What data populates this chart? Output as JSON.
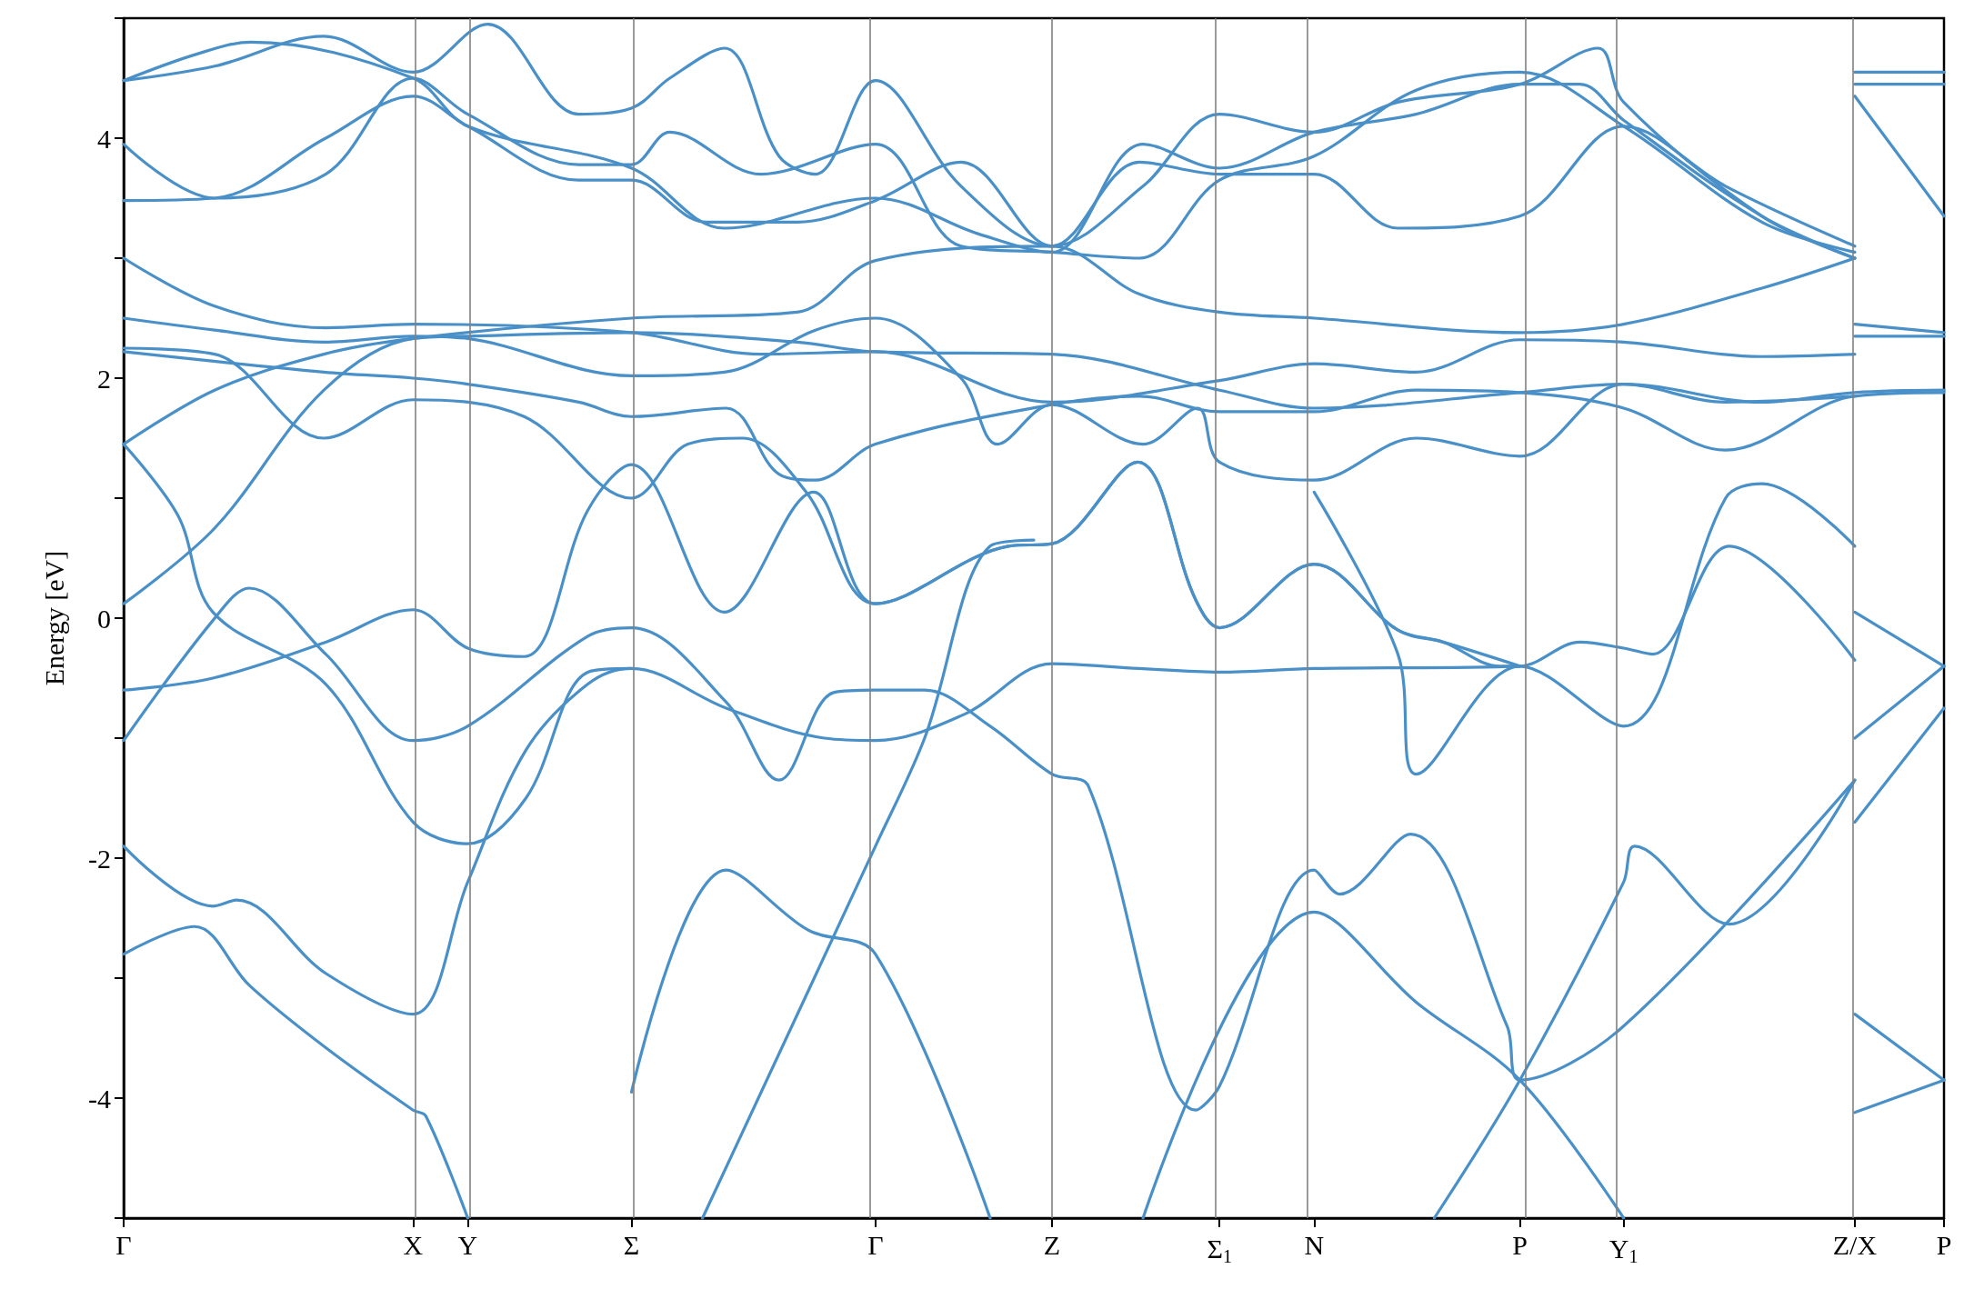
{
  "chart_data": {
    "type": "line",
    "ylabel": "Energy [eV]",
    "xlim": [
      0,
      1
    ],
    "ylim": [
      -5,
      5
    ],
    "xticks": [
      {
        "value": 0,
        "label": "Γ"
      },
      {
        "value": 0.159,
        "label": "X"
      },
      {
        "value": 0.189,
        "label": "Y"
      },
      {
        "value": 0.279,
        "label": "Σ"
      },
      {
        "value": 0.413,
        "label": "Γ"
      },
      {
        "value": 0.51,
        "label": "Z"
      },
      {
        "value": 0.602,
        "label": "Σ$_{1}$"
      },
      {
        "value": 0.654,
        "label": "N"
      },
      {
        "value": 0.767,
        "label": "P"
      },
      {
        "value": 0.824,
        "label": "Y$_{1}$"
      },
      {
        "value": 0.951,
        "label": "Z/X"
      },
      {
        "value": 1,
        "label": "P"
      }
    ],
    "yticks": [
      {
        "value": -5,
        "label": null
      },
      -4,
      {
        "value": -3,
        "label": null
      },
      -2,
      {
        "value": -1,
        "label": null
      },
      0,
      {
        "value": 1,
        "label": null
      },
      2,
      {
        "value": 3,
        "label": null
      },
      4,
      {
        "value": 5,
        "label": null
      }
    ],
    "grid": false,
    "marker": "none",
    "line_style": "solid",
    "ref_lines": [
      {
        "axis": "x",
        "value": 0.159,
        "color": "#808080"
      },
      {
        "axis": "x",
        "value": 0.189,
        "color": "#808080"
      },
      {
        "axis": "x",
        "value": 0.279,
        "color": "#808080"
      },
      {
        "axis": "x",
        "value": 0.413,
        "color": "#808080"
      },
      {
        "axis": "x",
        "value": 0.51,
        "color": "#808080"
      },
      {
        "axis": "x",
        "value": 0.602,
        "color": "#808080"
      },
      {
        "axis": "x",
        "value": 0.654,
        "color": "#808080"
      },
      {
        "axis": "x",
        "value": 0.767,
        "color": "#808080"
      },
      {
        "axis": "x",
        "value": 0.824,
        "color": "#808080"
      },
      {
        "axis": "x",
        "value": 0.951,
        "color": "#808080"
      }
    ],
    "series": [
      {
        "color": "#4a90c8",
        "x": [
          0,
          0.039,
          0.069,
          0.111,
          0.159,
          0.166,
          0.189
        ],
        "values": [
          -2.8,
          -2.57,
          -3.06,
          -3.58,
          -4.1,
          -4.15,
          -5
        ]
      },
      {
        "color": "#4a90c8",
        "x": [
          0,
          0.049,
          0.062,
          0.111,
          0.159,
          0.189,
          0.221,
          0.255,
          0.279,
          0.331,
          0.385,
          0.413,
          0.462,
          0.51,
          0.558,
          0.602,
          0.654,
          0.767,
          0.8,
          0.824,
          0.84,
          0.882,
          0.951
        ],
        "values": [
          -1.9,
          -2.4,
          -2.35,
          -2.96,
          -3.3,
          -2.2,
          -1.1,
          -0.55,
          -0.42,
          -0.75,
          -1.0,
          -1.02,
          -0.8,
          -0.38,
          -0.42,
          -0.45,
          -0.42,
          -0.4,
          -0.2,
          -0.25,
          -0.3,
          0.6,
          -0.35
        ]
      },
      {
        "color": "#4a90c8",
        "x": [
          0,
          0.049,
          0.069,
          0.111,
          0.159,
          0.189,
          0.255,
          0.279,
          0.331,
          0.36,
          0.39,
          0.413,
          0.44,
          0.476,
          0.51,
          0.53,
          0.589,
          0.602,
          0.654,
          0.668,
          0.707,
          0.76,
          0.767,
          0.824,
          0.951
        ],
        "values": [
          -1.02,
          -0.02,
          0.25,
          -0.3,
          -1.02,
          -0.9,
          -0.15,
          -0.08,
          -0.7,
          -1.35,
          -0.62,
          -0.6,
          -0.6,
          -0.9,
          -1.3,
          -1.4,
          -4.1,
          -3.9,
          -2.1,
          -2.3,
          -1.8,
          -3.4,
          -3.85,
          -3.4,
          -1.35
        ]
      },
      {
        "color": "#4a90c8",
        "x": [
          0,
          0.049,
          0.111,
          0.159,
          0.189,
          0.22,
          0.255,
          0.279,
          0.33,
          0.379,
          0.413,
          0.486,
          0.51,
          0.557,
          0.589,
          0.602,
          0.654,
          0.7,
          0.725,
          0.767
        ],
        "values": [
          -0.6,
          -0.5,
          -0.2,
          0.07,
          -0.25,
          -0.32,
          0.9,
          1.28,
          0.05,
          1.05,
          0.12,
          0.6,
          0.62,
          1.3,
          0.15,
          -0.08,
          0.45,
          -0.1,
          -0.2,
          -0.4
        ]
      },
      {
        "color": "#4a90c8",
        "x": [
          0,
          0.05,
          0.11,
          0.159,
          0.189,
          0.279,
          0.37,
          0.413,
          0.51,
          0.602,
          0.654,
          0.767,
          0.824,
          0.9,
          0.951,
          1
        ],
        "values": [
          0.12,
          0.75,
          1.9,
          2.33,
          2.35,
          2.38,
          2.3,
          2.22,
          2.2,
          1.9,
          1.75,
          1.88,
          1.95,
          1.8,
          1.88,
          1.9
        ]
      },
      {
        "color": "#4a90c8",
        "x": [
          0,
          0.03,
          0.049,
          0.111,
          0.159,
          0.189,
          0.221,
          0.255,
          0.279
        ],
        "values": [
          1.45,
          0.85,
          0.05,
          -0.55,
          -1.7,
          -1.88,
          -1.5,
          -0.45,
          -0.42
        ]
      },
      {
        "color": "#4a90c8",
        "x": [
          0,
          0.05,
          0.11,
          0.159,
          0.279,
          0.37,
          0.413,
          0.51,
          0.558,
          0.602,
          0.654,
          0.767,
          0.824,
          0.9,
          0.951
        ],
        "values": [
          1.45,
          1.9,
          2.2,
          2.33,
          2.5,
          2.55,
          2.98,
          3.1,
          2.7,
          2.55,
          2.5,
          2.38,
          2.45,
          2.75,
          3.0
        ]
      },
      {
        "color": "#4a90c8",
        "x": [
          0,
          0.11,
          0.159,
          0.189,
          0.25,
          0.279,
          0.331,
          0.36,
          0.38,
          0.413,
          0.51,
          0.558,
          0.602,
          0.654,
          0.71,
          0.767,
          0.824,
          0.88,
          0.951,
          1
        ],
        "values": [
          2.22,
          2.05,
          2.0,
          1.95,
          1.8,
          1.68,
          1.75,
          1.2,
          1.15,
          1.45,
          1.78,
          1.85,
          1.72,
          1.72,
          1.9,
          1.88,
          1.75,
          1.4,
          1.85,
          1.88
        ]
      },
      {
        "color": "#4a90c8",
        "x": [
          0,
          0.05,
          0.11,
          0.159,
          0.22,
          0.279,
          0.31,
          0.34,
          0.375,
          0.413,
          0.486,
          0.51,
          0.557,
          0.589,
          0.602,
          0.654,
          0.7,
          0.725,
          0.756,
          0.767
        ],
        "values": [
          2.25,
          2.2,
          1.5,
          1.82,
          1.68,
          1.0,
          1.45,
          1.5,
          1.05,
          0.12,
          0.6,
          0.62,
          1.3,
          0.15,
          -0.08,
          0.45,
          -0.1,
          -0.2,
          -0.4,
          -0.4
        ]
      },
      {
        "color": "#4a90c8",
        "x": [
          0,
          0.05,
          0.11,
          0.159,
          0.189,
          0.279,
          0.33,
          0.38,
          0.413,
          0.46,
          0.48,
          0.51,
          0.56,
          0.59,
          0.602,
          0.654,
          0.71,
          0.767,
          0.824,
          0.88,
          0.951
        ],
        "values": [
          2.5,
          2.4,
          2.3,
          2.35,
          2.33,
          2.02,
          2.05,
          2.4,
          2.5,
          2.0,
          1.45,
          1.78,
          1.45,
          1.75,
          1.3,
          1.15,
          1.5,
          1.35,
          1.95,
          1.8,
          1.85
        ]
      },
      {
        "color": "#4a90c8",
        "x": [
          0,
          0.05,
          0.111,
          0.159,
          0.279,
          0.35,
          0.413,
          0.51,
          0.602,
          0.654,
          0.71,
          0.767,
          0.824,
          0.9,
          0.951
        ],
        "values": [
          3.0,
          2.6,
          2.42,
          2.45,
          2.38,
          2.2,
          2.22,
          1.8,
          1.98,
          2.12,
          2.05,
          2.32,
          2.3,
          2.18,
          2.2
        ]
      },
      {
        "color": "#4a90c8",
        "x": [
          0,
          0.05,
          0.111,
          0.159,
          0.189,
          0.25,
          0.279,
          0.32,
          0.37,
          0.413,
          0.46,
          0.51,
          0.558,
          0.602,
          0.654,
          0.7,
          0.767,
          0.824,
          0.88,
          0.951
        ],
        "values": [
          3.48,
          3.5,
          4.0,
          4.35,
          4.1,
          3.65,
          3.65,
          3.3,
          3.3,
          3.48,
          3.8,
          3.1,
          3.8,
          3.7,
          3.7,
          3.25,
          3.35,
          4.1,
          3.6,
          3.1
        ]
      },
      {
        "color": "#4a90c8",
        "x": [
          0,
          0.05,
          0.111,
          0.159,
          0.189,
          0.25,
          0.279,
          0.3,
          0.35,
          0.413,
          0.46,
          0.51,
          0.558,
          0.602,
          0.654,
          0.71,
          0.767,
          0.824,
          0.9,
          0.951
        ],
        "values": [
          3.95,
          3.5,
          3.7,
          4.5,
          4.2,
          3.78,
          3.78,
          4.05,
          3.7,
          3.95,
          3.1,
          3.05,
          3.0,
          3.65,
          3.85,
          4.4,
          4.55,
          4.1,
          3.3,
          3.05
        ]
      },
      {
        "color": "#4a90c8",
        "x": [
          0,
          0.04,
          0.07,
          0.159,
          0.189,
          0.279,
          0.33,
          0.413,
          0.47,
          0.51,
          0.56,
          0.602,
          0.654,
          0.71,
          0.767,
          0.8,
          0.824,
          0.9,
          0.951
        ],
        "values": [
          4.48,
          4.7,
          4.8,
          4.5,
          4.1,
          3.75,
          3.25,
          3.5,
          3.2,
          3.05,
          3.95,
          3.75,
          4.05,
          4.2,
          4.45,
          4.45,
          4.15,
          3.35,
          3.0
        ]
      },
      {
        "color": "#4a90c8",
        "x": [
          0,
          0.05,
          0.11,
          0.159,
          0.2,
          0.25,
          0.279,
          0.3,
          0.33,
          0.36,
          0.38,
          0.413,
          0.46,
          0.51,
          0.56,
          0.602,
          0.654,
          0.7,
          0.767,
          0.81,
          0.824,
          0.9,
          0.951
        ],
        "values": [
          4.48,
          4.6,
          4.85,
          4.55,
          4.95,
          4.2,
          4.25,
          4.5,
          4.75,
          3.85,
          3.7,
          4.48,
          3.6,
          3.1,
          3.6,
          4.2,
          4.05,
          4.3,
          4.45,
          4.75,
          4.3,
          3.35,
          3.0
        ]
      },
      {
        "color": "#4a90c8",
        "x": [
          0.279,
          0.331,
          0.376,
          0.413,
          0.476
        ],
        "values": [
          -3.95,
          -2.1,
          -2.6,
          -2.8,
          -5
        ]
      },
      {
        "color": "#4a90c8",
        "x": [
          0.318,
          0.413,
          0.44,
          0.476,
          0.5
        ],
        "values": [
          -5,
          -1.9,
          -1.0,
          0.6,
          0.65
        ]
      },
      {
        "color": "#4a90c8",
        "x": [
          0.56,
          0.654,
          0.71,
          0.767,
          0.824
        ],
        "values": [
          -5,
          -2.45,
          -3.2,
          -3.85,
          -5
        ]
      },
      {
        "color": "#4a90c8",
        "x": [
          0.72,
          0.767,
          0.824,
          0.83,
          0.882,
          0.951
        ],
        "values": [
          -5,
          -3.85,
          -2.2,
          -1.9,
          -2.55,
          -1.35
        ]
      },
      {
        "color": "#4a90c8",
        "x": [
          0.654,
          0.7,
          0.71,
          0.767,
          0.824,
          0.88,
          0.9,
          0.951
        ],
        "values": [
          1.05,
          -0.3,
          -1.3,
          -0.4,
          -0.9,
          1.0,
          1.12,
          0.6
        ]
      },
      {
        "color": "#4a90c8",
        "x": [
          0.951,
          1
        ],
        "values": [
          0.05,
          -0.4
        ]
      },
      {
        "color": "#4a90c8",
        "x": [
          0.951,
          1
        ],
        "values": [
          -1.0,
          -0.4
        ]
      },
      {
        "color": "#4a90c8",
        "x": [
          0.951,
          1
        ],
        "values": [
          -1.7,
          -0.75
        ]
      },
      {
        "color": "#4a90c8",
        "x": [
          0.951,
          1
        ],
        "values": [
          -3.3,
          -3.85
        ]
      },
      {
        "color": "#4a90c8",
        "x": [
          0.951,
          1
        ],
        "values": [
          -4.12,
          -3.85
        ]
      },
      {
        "color": "#4a90c8",
        "x": [
          0.951,
          1
        ],
        "values": [
          4.55,
          4.55
        ]
      },
      {
        "color": "#4a90c8",
        "x": [
          0.951,
          1
        ],
        "values": [
          4.45,
          4.45
        ]
      },
      {
        "color": "#4a90c8",
        "x": [
          0.951,
          1
        ],
        "values": [
          2.35,
          2.35
        ]
      },
      {
        "color": "#4a90c8",
        "x": [
          0.951,
          1
        ],
        "values": [
          4.35,
          3.35
        ]
      },
      {
        "color": "#4a90c8",
        "x": [
          0.951,
          1
        ],
        "values": [
          2.45,
          2.38
        ]
      }
    ]
  }
}
